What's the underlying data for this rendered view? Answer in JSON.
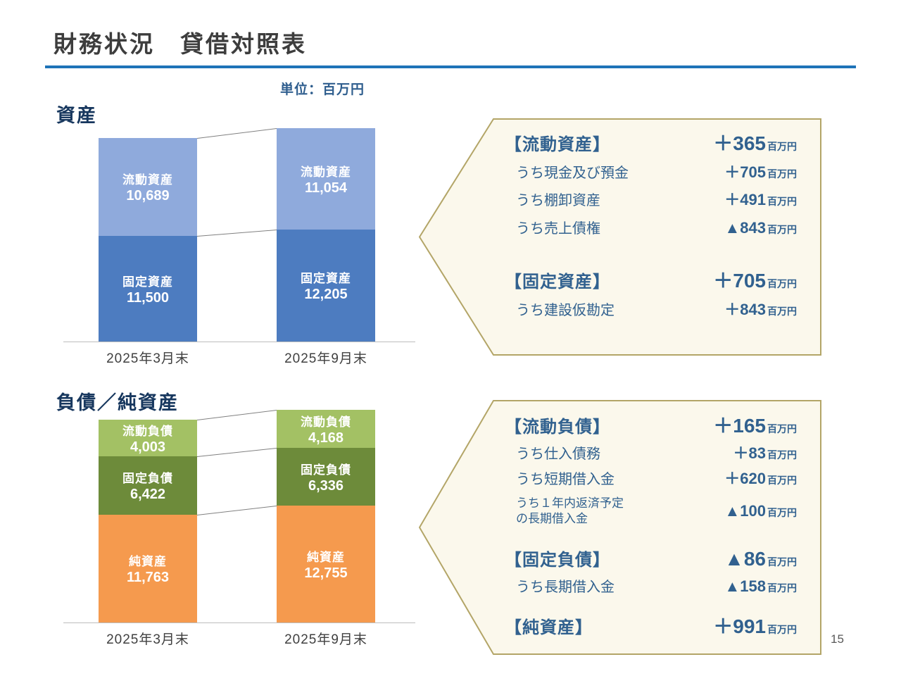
{
  "title": "財務状況　貸借対照表",
  "unit_label": "単位：百万円",
  "page_number": "15",
  "colors": {
    "accent_rule_blue": "#1e73b8",
    "text_blue": "#31618f",
    "heading_navy": "#17375e",
    "light_blue": "#8faadc",
    "dark_blue": "#4d7cc0",
    "light_green": "#a3c164",
    "dark_green": "#6d8b3a",
    "orange": "#f59a4e",
    "callout_fill": "#fbf8ec",
    "callout_border": "#b3a567"
  },
  "chart_data": [
    {
      "type": "bar",
      "stacked": true,
      "title": "資産",
      "unit": "百万円",
      "categories": [
        "2025年3月末",
        "2025年9月末"
      ],
      "series": [
        {
          "name": "固定資産",
          "values": [
            11500,
            12205
          ],
          "color": "#4d7cc0"
        },
        {
          "name": "流動資産",
          "values": [
            10689,
            11054
          ],
          "color": "#8faadc"
        }
      ],
      "totals": [
        22189,
        23259
      ],
      "legend_position": "none",
      "grid": false,
      "value_labels": "inside"
    },
    {
      "type": "bar",
      "stacked": true,
      "title": "負債／純資産",
      "unit": "百万円",
      "categories": [
        "2025年3月末",
        "2025年9月末"
      ],
      "series": [
        {
          "name": "純資産",
          "values": [
            11763,
            12755
          ],
          "color": "#f59a4e"
        },
        {
          "name": "固定負債",
          "values": [
            6422,
            6336
          ],
          "color": "#6d8b3a"
        },
        {
          "name": "流動負債",
          "values": [
            4003,
            4168
          ],
          "color": "#a3c164"
        }
      ],
      "totals": [
        22188,
        23259
      ],
      "legend_position": "none",
      "grid": false,
      "value_labels": "inside"
    }
  ],
  "callouts": [
    {
      "name": "assets-changes",
      "rows": [
        {
          "type": "header",
          "label": "【流動資産】",
          "value": "＋365",
          "unit": "百万円"
        },
        {
          "type": "sub",
          "label": "うち現金及び預金",
          "value": "＋705",
          "unit": "百万円"
        },
        {
          "type": "sub",
          "label": "うち棚卸資産",
          "value": "＋491",
          "unit": "百万円"
        },
        {
          "type": "sub",
          "label": "うち売上債権",
          "value": "▲843",
          "unit": "百万円"
        },
        {
          "type": "header",
          "label": "【固定資産】",
          "value": "＋705",
          "unit": "百万円"
        },
        {
          "type": "sub",
          "label": "うち建設仮勘定",
          "value": "＋843",
          "unit": "百万円"
        }
      ]
    },
    {
      "name": "liabilities-changes",
      "rows": [
        {
          "type": "header",
          "label": "【流動負債】",
          "value": "＋165",
          "unit": "百万円"
        },
        {
          "type": "sub",
          "label": "うち仕入債務",
          "value": "＋83",
          "unit": "百万円"
        },
        {
          "type": "sub",
          "label": "うち短期借入金",
          "value": "＋620",
          "unit": "百万円"
        },
        {
          "type": "subsmall",
          "label": "うち１年内返済予定\nの長期借入金",
          "value": "▲100",
          "unit": "百万円"
        },
        {
          "type": "header",
          "label": "【固定負債】",
          "value": "▲86",
          "unit": "百万円"
        },
        {
          "type": "sub",
          "label": "うち長期借入金",
          "value": "▲158",
          "unit": "百万円"
        },
        {
          "type": "header",
          "label": "【純資産】",
          "value": "＋991",
          "unit": "百万円"
        }
      ]
    }
  ]
}
